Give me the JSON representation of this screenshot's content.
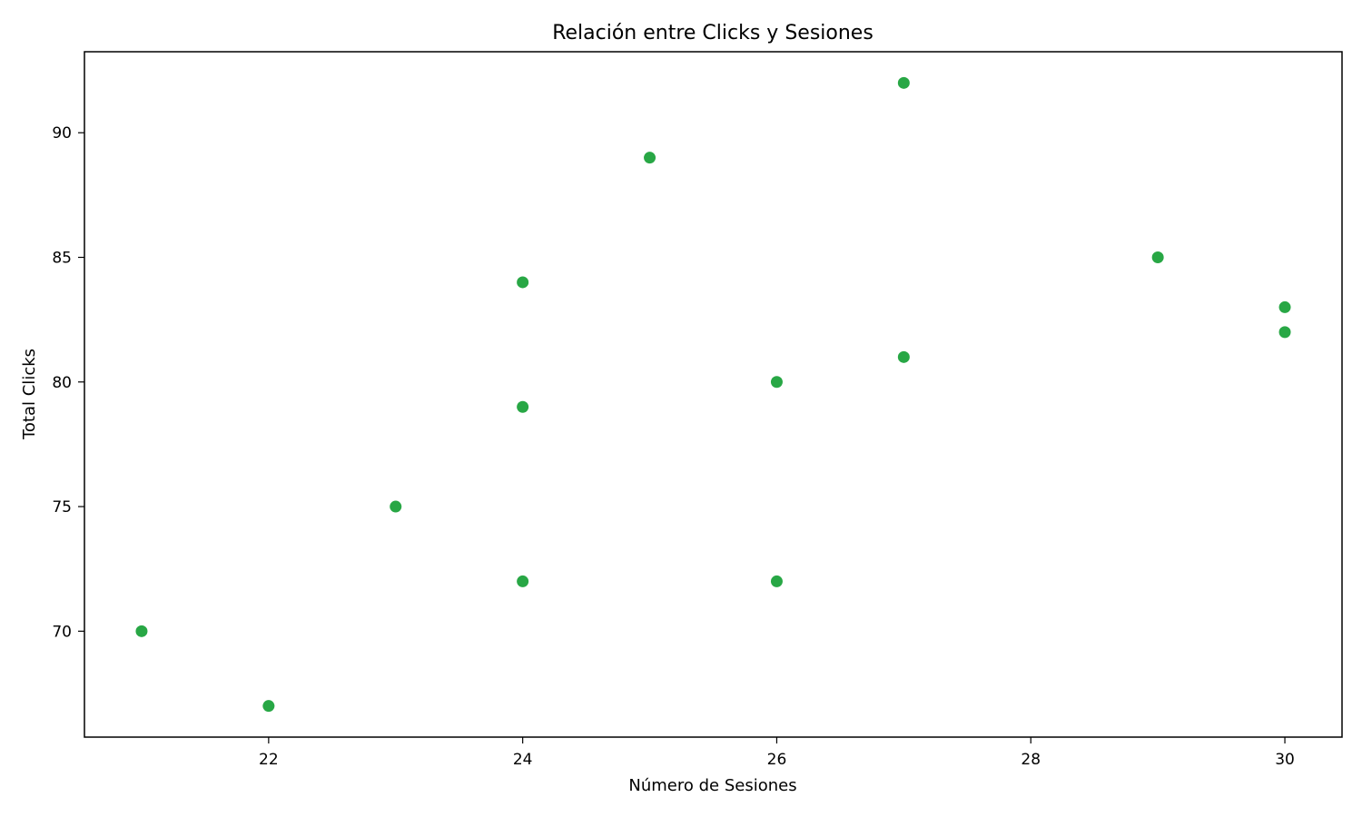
{
  "chart_data": {
    "type": "scatter",
    "title": "Relación entre Clicks y Sesiones",
    "xlabel": "Número de Sesiones",
    "ylabel": "Total Clicks",
    "xlim": [
      20.55,
      30.45
    ],
    "ylim": [
      65.75,
      93.25
    ],
    "xticks": [
      22,
      24,
      26,
      28,
      30
    ],
    "yticks": [
      70,
      75,
      80,
      85,
      90
    ],
    "grid": false,
    "legend": "none",
    "marker_color": "#28a745",
    "points": [
      {
        "x": 27,
        "y": 92
      },
      {
        "x": 25,
        "y": 89
      },
      {
        "x": 29,
        "y": 85
      },
      {
        "x": 24,
        "y": 84
      },
      {
        "x": 30,
        "y": 83
      },
      {
        "x": 30,
        "y": 82
      },
      {
        "x": 27,
        "y": 81
      },
      {
        "x": 26,
        "y": 80
      },
      {
        "x": 24,
        "y": 79
      },
      {
        "x": 23,
        "y": 75
      },
      {
        "x": 24,
        "y": 72
      },
      {
        "x": 26,
        "y": 72
      },
      {
        "x": 21,
        "y": 70
      },
      {
        "x": 22,
        "y": 67
      }
    ]
  }
}
